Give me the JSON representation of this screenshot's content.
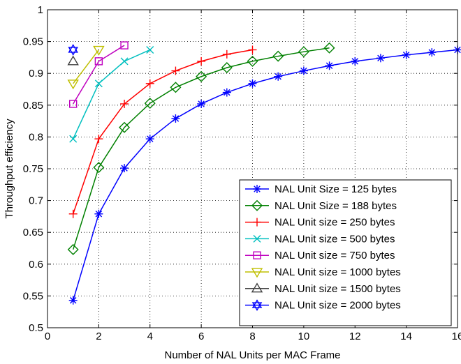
{
  "chart_data": {
    "type": "line",
    "title": "",
    "xlabel": "Number of NAL Units per MAC Frame",
    "ylabel": "Throughput efficiency",
    "xlim": [
      0,
      16
    ],
    "ylim": [
      0.5,
      1.0
    ],
    "x_ticks": [
      "0",
      "2",
      "4",
      "6",
      "8",
      "10",
      "12",
      "14",
      "16"
    ],
    "y_ticks": [
      "0.5",
      "0.55",
      "0.6",
      "0.65",
      "0.7",
      "0.75",
      "0.8",
      "0.85",
      "0.9",
      "0.95",
      "1"
    ],
    "grid": true,
    "legend_position": "lower-right",
    "series": [
      {
        "name": "NAL Unit Size = 125 bytes",
        "color": "#0000ff",
        "marker": "asterisk",
        "x": [
          1,
          2,
          3,
          4,
          5,
          6,
          7,
          8,
          9,
          10,
          11,
          12,
          13,
          14,
          15,
          16
        ],
        "y": [
          0.543,
          0.679,
          0.751,
          0.797,
          0.829,
          0.852,
          0.87,
          0.884,
          0.895,
          0.904,
          0.912,
          0.919,
          0.924,
          0.929,
          0.933,
          0.937
        ]
      },
      {
        "name": "NAL Unit Size = 188 bytes",
        "color": "#008000",
        "marker": "diamond",
        "x": [
          1,
          2,
          3,
          4,
          5,
          6,
          7,
          8,
          9,
          10,
          11
        ],
        "y": [
          0.623,
          0.752,
          0.815,
          0.853,
          0.878,
          0.895,
          0.909,
          0.919,
          0.927,
          0.934,
          0.94
        ]
      },
      {
        "name": "NAL Unit size = 250 bytes",
        "color": "#ff0000",
        "marker": "plus",
        "x": [
          1,
          2,
          3,
          4,
          5,
          6,
          7,
          8
        ],
        "y": [
          0.679,
          0.797,
          0.852,
          0.884,
          0.904,
          0.919,
          0.93,
          0.937
        ]
      },
      {
        "name": "NAL Unit size = 500 bytes",
        "color": "#00bfbf",
        "marker": "x",
        "x": [
          1,
          2,
          3,
          4
        ],
        "y": [
          0.797,
          0.884,
          0.919,
          0.937
        ]
      },
      {
        "name": "NAL Unit size = 750 bytes",
        "color": "#bf00bf",
        "marker": "square",
        "x": [
          1,
          2,
          3
        ],
        "y": [
          0.852,
          0.919,
          0.944
        ]
      },
      {
        "name": "NAL Unit size = 1000 bytes",
        "color": "#bfbf00",
        "marker": "triangle-down",
        "x": [
          1,
          2
        ],
        "y": [
          0.884,
          0.937
        ]
      },
      {
        "name": "NAL Unit size = 1500 bytes",
        "color": "#404040",
        "marker": "triangle-up",
        "x": [
          1
        ],
        "y": [
          0.919
        ]
      },
      {
        "name": "NAL Unit size = 2000 bytes",
        "color": "#0000ff",
        "marker": "hexagram",
        "x": [
          1
        ],
        "y": [
          0.937
        ]
      }
    ]
  }
}
